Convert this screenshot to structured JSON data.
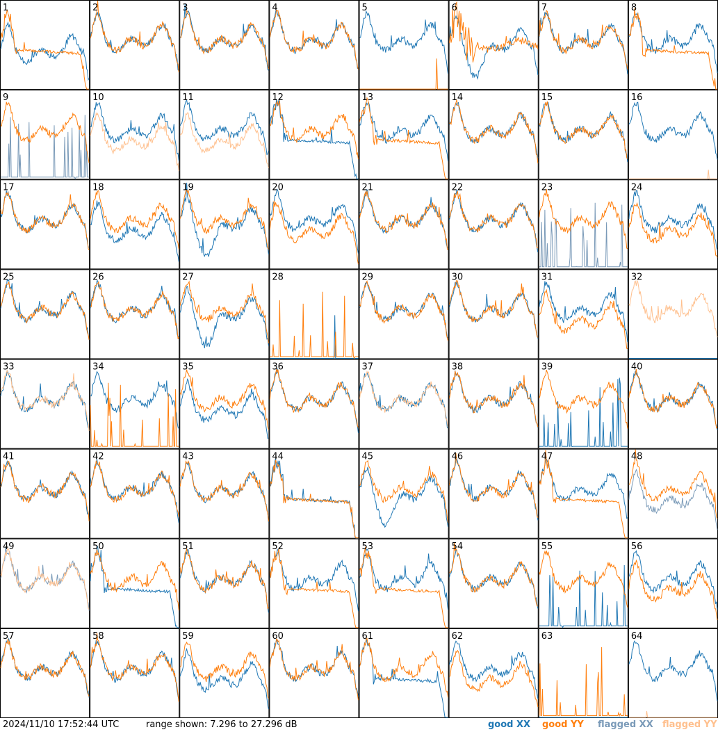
{
  "footer": {
    "timestamp": "2024/11/10 17:52:44 UTC",
    "range_text": "range shown: 7.296 to 27.296 dB"
  },
  "legend": [
    {
      "key": "good_xx",
      "label": "good XX",
      "color": "#1f77b4"
    },
    {
      "key": "good_yy",
      "label": "good YY",
      "color": "#ff7f0e"
    },
    {
      "key": "flagged_xx",
      "label": "flagged XX",
      "color": "#7a9ab8"
    },
    {
      "key": "flagged_yy",
      "label": "flagged YY",
      "color": "#ffc08e"
    }
  ],
  "chart_data": {
    "type": "line",
    "grid_rows": 8,
    "grid_cols": 8,
    "range_db": [
      7.296,
      27.296
    ],
    "panels": [
      {
        "id": "1",
        "xx": "low",
        "yy": "rolloff",
        "flags": ""
      },
      {
        "id": "2",
        "xx": "normal",
        "yy": "normal",
        "flags": ""
      },
      {
        "id": "3",
        "xx": "normal",
        "yy": "normal",
        "flags": ""
      },
      {
        "id": "4",
        "xx": "normal",
        "yy": "normal",
        "flags": ""
      },
      {
        "id": "5",
        "xx": "normal",
        "yy": "dead",
        "flags": ""
      },
      {
        "id": "6",
        "xx": "dip",
        "yy": "flagged",
        "flags": ""
      },
      {
        "id": "7",
        "xx": "normal",
        "yy": "normal",
        "flags": ""
      },
      {
        "id": "8",
        "xx": "normal",
        "yy": "rolloff",
        "flags": ""
      },
      {
        "id": "9",
        "xx": "spiky",
        "yy": "normal",
        "flags": "xx"
      },
      {
        "id": "10",
        "xx": "normal",
        "yy": "low",
        "flags": "yy"
      },
      {
        "id": "11",
        "xx": "normal",
        "yy": "low",
        "flags": "yy"
      },
      {
        "id": "12",
        "xx": "rolloff",
        "yy": "normal",
        "flags": ""
      },
      {
        "id": "13",
        "xx": "normal",
        "yy": "rolloff",
        "flags": ""
      },
      {
        "id": "14",
        "xx": "normal",
        "yy": "normal",
        "flags": ""
      },
      {
        "id": "15",
        "xx": "normal",
        "yy": "normal",
        "flags": ""
      },
      {
        "id": "16",
        "xx": "normal",
        "yy": "dead",
        "flags": "yy"
      },
      {
        "id": "17",
        "xx": "normal",
        "yy": "normal",
        "flags": ""
      },
      {
        "id": "18",
        "xx": "low",
        "yy": "normal",
        "flags": ""
      },
      {
        "id": "19",
        "xx": "dip",
        "yy": "normal",
        "flags": ""
      },
      {
        "id": "20",
        "xx": "normal",
        "yy": "low",
        "flags": ""
      },
      {
        "id": "21",
        "xx": "normal",
        "yy": "normal",
        "flags": ""
      },
      {
        "id": "22",
        "xx": "normal",
        "yy": "normal",
        "flags": ""
      },
      {
        "id": "23",
        "xx": "spiky",
        "yy": "normal",
        "flags": "xx"
      },
      {
        "id": "24",
        "xx": "normal",
        "yy": "low",
        "flags": ""
      },
      {
        "id": "25",
        "xx": "normal",
        "yy": "normal",
        "flags": ""
      },
      {
        "id": "26",
        "xx": "normal",
        "yy": "normal",
        "flags": ""
      },
      {
        "id": "27",
        "xx": "dip",
        "yy": "normal",
        "flags": ""
      },
      {
        "id": "28",
        "xx": "dead",
        "yy": "spiky",
        "flags": ""
      },
      {
        "id": "29",
        "xx": "normal",
        "yy": "normal",
        "flags": ""
      },
      {
        "id": "30",
        "xx": "normal",
        "yy": "normal",
        "flags": ""
      },
      {
        "id": "31",
        "xx": "normal",
        "yy": "low",
        "flags": ""
      },
      {
        "id": "32",
        "xx": "dead",
        "yy": "normal",
        "flags": "yy"
      },
      {
        "id": "33",
        "xx": "normal",
        "yy": "normal",
        "flags": "yy"
      },
      {
        "id": "34",
        "xx": "normal",
        "yy": "spiky",
        "flags": ""
      },
      {
        "id": "35",
        "xx": "low",
        "yy": "normal",
        "flags": ""
      },
      {
        "id": "36",
        "xx": "normal",
        "yy": "normal",
        "flags": ""
      },
      {
        "id": "37",
        "xx": "normal",
        "yy": "normal",
        "flags": "yy"
      },
      {
        "id": "38",
        "xx": "normal",
        "yy": "normal",
        "flags": ""
      },
      {
        "id": "39",
        "xx": "spiky",
        "yy": "normal",
        "flags": ""
      },
      {
        "id": "40",
        "xx": "normal",
        "yy": "normal",
        "flags": ""
      },
      {
        "id": "41",
        "xx": "normal",
        "yy": "normal",
        "flags": ""
      },
      {
        "id": "42",
        "xx": "normal",
        "yy": "normal",
        "flags": ""
      },
      {
        "id": "43",
        "xx": "normal",
        "yy": "normal",
        "flags": ""
      },
      {
        "id": "44",
        "xx": "rolloff",
        "yy": "rolloff",
        "flags": ""
      },
      {
        "id": "45",
        "xx": "dip",
        "yy": "normal",
        "flags": ""
      },
      {
        "id": "46",
        "xx": "normal",
        "yy": "normal",
        "flags": ""
      },
      {
        "id": "47",
        "xx": "normal",
        "yy": "rolloff",
        "flags": ""
      },
      {
        "id": "48",
        "xx": "low",
        "yy": "normal",
        "flags": "xx"
      },
      {
        "id": "49",
        "xx": "normal",
        "yy": "normal",
        "flags": "both"
      },
      {
        "id": "50",
        "xx": "rolloff",
        "yy": "normal",
        "flags": ""
      },
      {
        "id": "51",
        "xx": "normal",
        "yy": "normal",
        "flags": ""
      },
      {
        "id": "52",
        "xx": "normal",
        "yy": "rolloff",
        "flags": ""
      },
      {
        "id": "53",
        "xx": "normal",
        "yy": "rolloff",
        "flags": ""
      },
      {
        "id": "54",
        "xx": "normal",
        "yy": "normal",
        "flags": ""
      },
      {
        "id": "55",
        "xx": "spiky",
        "yy": "normal",
        "flags": ""
      },
      {
        "id": "56",
        "xx": "normal",
        "yy": "low",
        "flags": ""
      },
      {
        "id": "57",
        "xx": "normal",
        "yy": "normal",
        "flags": ""
      },
      {
        "id": "58",
        "xx": "normal",
        "yy": "normal",
        "flags": ""
      },
      {
        "id": "59",
        "xx": "low",
        "yy": "normal",
        "flags": ""
      },
      {
        "id": "60",
        "xx": "normal",
        "yy": "normal",
        "flags": ""
      },
      {
        "id": "61",
        "xx": "rolloff",
        "yy": "normal",
        "flags": ""
      },
      {
        "id": "62",
        "xx": "normal",
        "yy": "low",
        "flags": ""
      },
      {
        "id": "63",
        "xx": "dead",
        "yy": "spiky",
        "flags": ""
      },
      {
        "id": "64",
        "xx": "normal",
        "yy": "dead",
        "flags": "yy"
      }
    ]
  }
}
